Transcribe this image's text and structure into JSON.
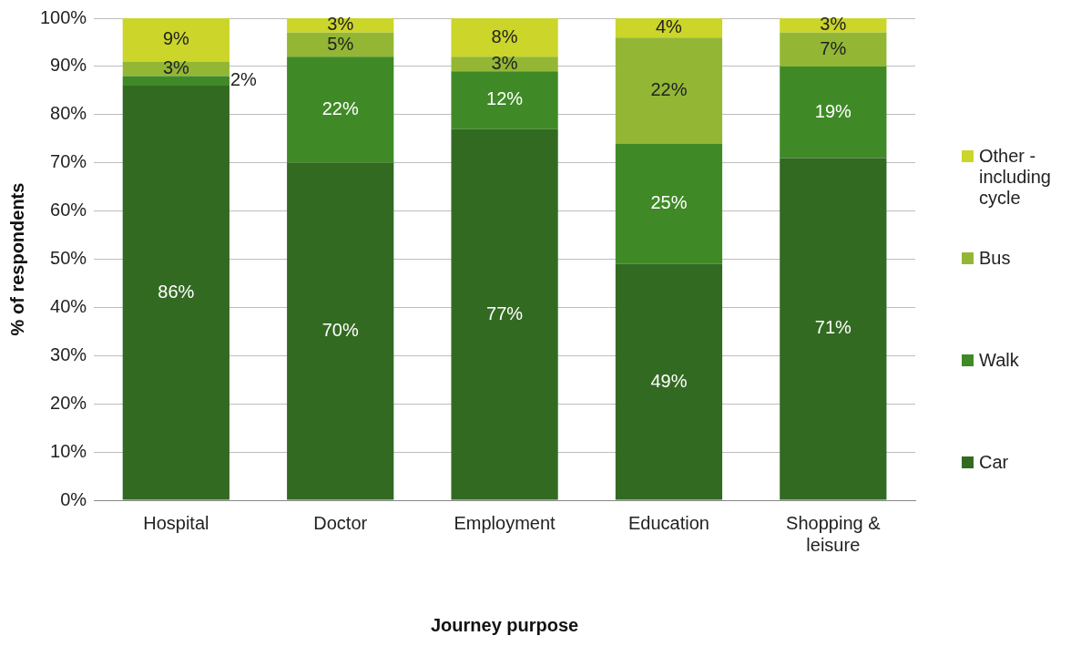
{
  "chart_data": {
    "type": "bar",
    "stacked": true,
    "xlabel": "Journey purpose",
    "ylabel": "% of respondents",
    "categories": [
      "Hospital",
      "Doctor",
      "Employment",
      "Education",
      "Shopping & leisure"
    ],
    "series": [
      {
        "name": "Car",
        "color": "#336a22",
        "values": [
          86,
          70,
          77,
          49,
          71
        ],
        "value_labels": [
          "86%",
          "70%",
          "77%",
          "49%",
          "71%"
        ]
      },
      {
        "name": "Walk",
        "color": "#3f8a27",
        "values": [
          2,
          22,
          12,
          25,
          19
        ],
        "value_labels": [
          "2%",
          "22%",
          "12%",
          "25%",
          "19%"
        ]
      },
      {
        "name": "Bus",
        "color": "#93b735",
        "values": [
          3,
          5,
          3,
          22,
          7
        ],
        "value_labels": [
          "3%",
          "5%",
          "3%",
          "22%",
          "7%"
        ]
      },
      {
        "name": "Other - including cycle",
        "color": "#cbd52a",
        "values": [
          9,
          3,
          8,
          4,
          3
        ],
        "value_labels": [
          "9%",
          "3%",
          "8%",
          "4%",
          "3%"
        ]
      }
    ],
    "ylim": [
      0,
      100
    ],
    "yticks": [
      {
        "value": 0,
        "label": "0%"
      },
      {
        "value": 10,
        "label": "10%"
      },
      {
        "value": 20,
        "label": "20%"
      },
      {
        "value": 30,
        "label": "30%"
      },
      {
        "value": 40,
        "label": "40%"
      },
      {
        "value": 50,
        "label": "50%"
      },
      {
        "value": 60,
        "label": "60%"
      },
      {
        "value": 70,
        "label": "70%"
      },
      {
        "value": 80,
        "label": "80%"
      },
      {
        "value": 90,
        "label": "90%"
      },
      {
        "value": 100,
        "label": "100%"
      }
    ],
    "grid": "y",
    "legend": "right"
  }
}
